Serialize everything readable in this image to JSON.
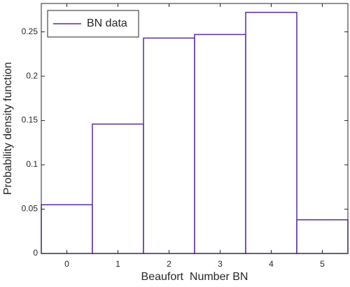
{
  "chart_data": {
    "type": "histogram",
    "xlabel": "Beaufort  Number BN",
    "ylabel": "Probability density function",
    "bins": [
      -0.5,
      0.5,
      1.5,
      2.5,
      3.5,
      4.5,
      5.5
    ],
    "series": [
      {
        "name": "BN data",
        "color": "#5b2a9e",
        "values": [
          0.055,
          0.146,
          0.243,
          0.247,
          0.272,
          0.038
        ]
      }
    ],
    "xlim": [
      -0.5,
      5.5
    ],
    "xticks": [
      0,
      1,
      2,
      3,
      4,
      5
    ],
    "ylim": [
      0,
      0.282
    ],
    "yticks": [
      0,
      0.05,
      0.1,
      0.15,
      0.2,
      0.25
    ],
    "grid": false,
    "legend": "upper-left"
  }
}
